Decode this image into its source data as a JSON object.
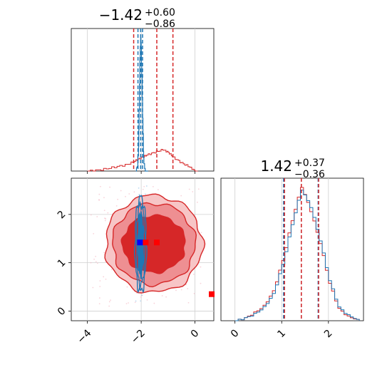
{
  "chart_data": {
    "type": "corner",
    "parameters": [
      "param_0",
      "param_1"
    ],
    "colors": {
      "series_a": "#d62728",
      "series_b": "#1f77b4"
    },
    "grid": true,
    "panel_top_left": {
      "type": "histogram",
      "title": {
        "median": "−1.42",
        "upper": "+0.60",
        "lower": "−0.86"
      },
      "xlim": [
        -4.6,
        0.7
      ],
      "quantile_lines_series_a": [
        -2.28,
        -1.42,
        -0.82
      ],
      "quantile_lines_series_b": [
        -2.12,
        -2.02,
        -1.95
      ],
      "hist_series_a": {
        "x": [
          -4.0,
          -3.5,
          -3.0,
          -2.5,
          -2.2,
          -2.0,
          -1.8,
          -1.5,
          -1.2,
          -1.0,
          -0.8,
          -0.5,
          -0.2,
          0.0
        ],
        "y": [
          0.0,
          0.01,
          0.03,
          0.05,
          0.08,
          0.1,
          0.12,
          0.14,
          0.16,
          0.14,
          0.1,
          0.06,
          0.03,
          0.0
        ]
      },
      "hist_series_b": {
        "x": [
          -2.2,
          -2.15,
          -2.1,
          -2.08,
          -2.05,
          -2.02,
          -2.0,
          -1.98,
          -1.95,
          -1.92,
          -1.9,
          -1.85
        ],
        "y": [
          0.0,
          0.04,
          0.18,
          0.45,
          0.85,
          1.0,
          0.92,
          0.7,
          0.4,
          0.15,
          0.05,
          0.0
        ]
      }
    },
    "panel_bottom_left": {
      "type": "2d-contour",
      "xlim": [
        -4.6,
        0.7
      ],
      "ylim": [
        -0.2,
        2.75
      ],
      "xticks": [
        "−4",
        "−2",
        "0"
      ],
      "xtick_values": [
        -4,
        -2,
        0
      ],
      "yticks": [
        "0",
        "1",
        "2"
      ],
      "ytick_values": [
        0,
        1,
        2
      ],
      "center_series_a": [
        -1.42,
        1.42
      ],
      "center_series_b": [
        -2.02,
        1.42
      ],
      "extra_marker_series_a": [
        0.45,
        0.35
      ]
    },
    "panel_bottom_right": {
      "type": "histogram",
      "title": {
        "median": "1.42",
        "upper": "+0.37",
        "lower": "−0.36"
      },
      "xlim": [
        -0.3,
        2.75
      ],
      "xticks": [
        "0",
        "1",
        "2"
      ],
      "xtick_values": [
        0,
        1,
        2
      ],
      "quantile_lines_series_a": [
        1.06,
        1.42,
        1.79
      ],
      "quantile_lines_series_b": [
        1.04,
        1.42,
        1.78
      ],
      "hist_series_a": {
        "x": [
          0.0,
          0.2,
          0.4,
          0.6,
          0.8,
          1.0,
          1.2,
          1.4,
          1.6,
          1.8,
          2.0,
          2.2,
          2.4,
          2.6
        ],
        "y": [
          0.0,
          0.02,
          0.05,
          0.1,
          0.2,
          0.42,
          0.72,
          0.98,
          0.85,
          0.6,
          0.3,
          0.1,
          0.04,
          0.01
        ]
      },
      "hist_series_b": {
        "x": [
          0.0,
          0.2,
          0.4,
          0.6,
          0.8,
          1.0,
          1.2,
          1.4,
          1.6,
          1.8,
          2.0,
          2.2,
          2.4,
          2.6
        ],
        "y": [
          0.0,
          0.02,
          0.06,
          0.11,
          0.22,
          0.45,
          0.75,
          1.0,
          0.82,
          0.58,
          0.28,
          0.09,
          0.03,
          0.01
        ]
      }
    }
  }
}
